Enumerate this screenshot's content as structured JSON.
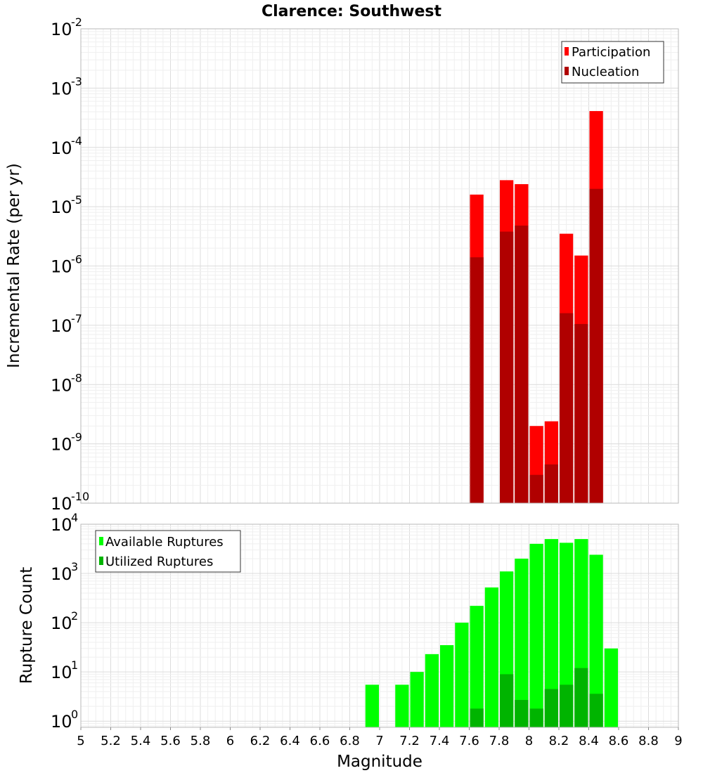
{
  "chart_data": [
    {
      "type": "bar",
      "title": "Clarence: Southwest",
      "xlabel": "",
      "ylabel": "Incremental Rate (per yr)",
      "yscale": "log",
      "ylim": [
        1e-10,
        0.01
      ],
      "xlim": [
        5,
        9
      ],
      "bar_width": 0.1,
      "legend_position": "top-right",
      "series": [
        {
          "name": "Participation",
          "color": "#ff0000",
          "points": [
            {
              "x": 7.65,
              "y": 1.6e-05
            },
            {
              "x": 7.85,
              "y": 2.8e-05
            },
            {
              "x": 7.95,
              "y": 2.4e-05
            },
            {
              "x": 8.05,
              "y": 2e-09
            },
            {
              "x": 8.15,
              "y": 2.4e-09
            },
            {
              "x": 8.25,
              "y": 3.5e-06
            },
            {
              "x": 8.35,
              "y": 1.5e-06
            },
            {
              "x": 8.45,
              "y": 0.00041
            }
          ]
        },
        {
          "name": "Nucleation",
          "color": "#b00000",
          "points": [
            {
              "x": 7.65,
              "y": 1.4e-06
            },
            {
              "x": 7.85,
              "y": 3.8e-06
            },
            {
              "x": 7.95,
              "y": 4.8e-06
            },
            {
              "x": 8.05,
              "y": 3e-10
            },
            {
              "x": 8.15,
              "y": 4.5e-10
            },
            {
              "x": 8.25,
              "y": 1.6e-07
            },
            {
              "x": 8.35,
              "y": 1.05e-07
            },
            {
              "x": 8.45,
              "y": 2e-05
            }
          ]
        }
      ]
    },
    {
      "type": "bar",
      "title": "",
      "xlabel": "Magnitude",
      "ylabel": "Rupture Count",
      "yscale": "log",
      "ylim": [
        0.75,
        10000
      ],
      "xlim": [
        5,
        9
      ],
      "bar_width": 0.1,
      "legend_position": "top-left",
      "x_ticks": [
        "5",
        "5.2",
        "5.4",
        "5.6",
        "5.8",
        "6",
        "6.2",
        "6.4",
        "6.6",
        "6.8",
        "7",
        "7.2",
        "7.4",
        "7.6",
        "7.8",
        "8",
        "8.2",
        "8.4",
        "8.6",
        "8.8",
        "9"
      ],
      "series": [
        {
          "name": "Available Ruptures",
          "color": "#00ff00",
          "points": [
            {
              "x": 6.95,
              "y": 5.5
            },
            {
              "x": 7.15,
              "y": 5.5
            },
            {
              "x": 7.25,
              "y": 10
            },
            {
              "x": 7.35,
              "y": 23
            },
            {
              "x": 7.45,
              "y": 35
            },
            {
              "x": 7.55,
              "y": 100
            },
            {
              "x": 7.65,
              "y": 220
            },
            {
              "x": 7.75,
              "y": 520
            },
            {
              "x": 7.85,
              "y": 1100
            },
            {
              "x": 7.95,
              "y": 2000
            },
            {
              "x": 8.05,
              "y": 4000
            },
            {
              "x": 8.15,
              "y": 5000
            },
            {
              "x": 8.25,
              "y": 4200
            },
            {
              "x": 8.35,
              "y": 5000
            },
            {
              "x": 8.45,
              "y": 2400
            },
            {
              "x": 8.55,
              "y": 30
            }
          ]
        },
        {
          "name": "Utilized Ruptures",
          "color": "#00b400",
          "points": [
            {
              "x": 7.65,
              "y": 1.8
            },
            {
              "x": 7.85,
              "y": 9
            },
            {
              "x": 7.95,
              "y": 2.7
            },
            {
              "x": 8.05,
              "y": 1.8
            },
            {
              "x": 8.15,
              "y": 4.5
            },
            {
              "x": 8.25,
              "y": 5.5
            },
            {
              "x": 8.35,
              "y": 12
            },
            {
              "x": 8.45,
              "y": 3.6
            }
          ]
        }
      ]
    }
  ]
}
